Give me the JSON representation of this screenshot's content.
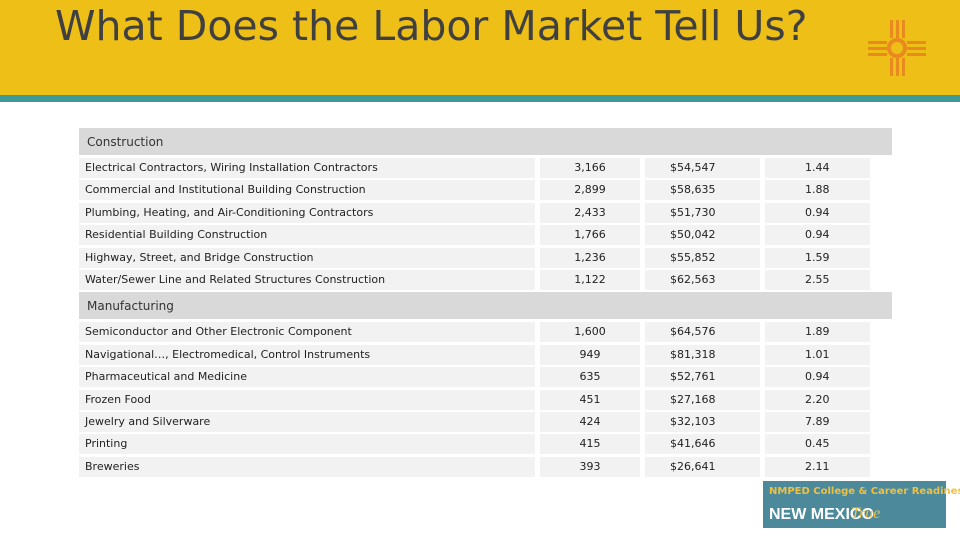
{
  "title": "What Does the Labor Market Tell Us?",
  "table": {
    "sections": [
      {
        "name": "Construction",
        "rows": [
          [
            "Electrical Contractors, Wiring Installation Contractors",
            "3,166",
            "$54,547",
            "1.44"
          ],
          [
            "Commercial and Institutional Building Construction",
            "2,899",
            "$58,635",
            "1.88"
          ],
          [
            "Plumbing, Heating, and Air-Conditioning Contractors",
            "2,433",
            "$51,730",
            "0.94"
          ],
          [
            "Residential Building Construction",
            "1,766",
            "$50,042",
            "0.94"
          ],
          [
            "Highway, Street, and Bridge Construction",
            "1,236",
            "$55,852",
            "1.59"
          ],
          [
            "Water/Sewer Line and Related Structures Construction",
            "1,122",
            "$62,563",
            "2.55"
          ]
        ]
      },
      {
        "name": "Manufacturing",
        "rows": [
          [
            "Semiconductor and Other Electronic Component",
            "1,600",
            "$64,576",
            "1.89"
          ],
          [
            "Navigational…, Electromedical, Control Instruments",
            "949",
            "$81,318",
            "1.01"
          ],
          [
            "Pharmaceutical and Medicine",
            "635",
            "$52,761",
            "0.94"
          ],
          [
            "Frozen Food",
            "451",
            "$27,168",
            "2.20"
          ],
          [
            "Jewelry and Silverware",
            "424",
            "$32,103",
            "7.89"
          ],
          [
            "Printing",
            "415",
            "$41,646",
            "0.45"
          ],
          [
            "Breweries",
            "393",
            "$26,641",
            "2.11"
          ]
        ]
      }
    ]
  },
  "logo": {
    "line1": "NMPED College & Career Readiness is",
    "line2": "NEW MEXICO",
    "line3": "True"
  }
}
